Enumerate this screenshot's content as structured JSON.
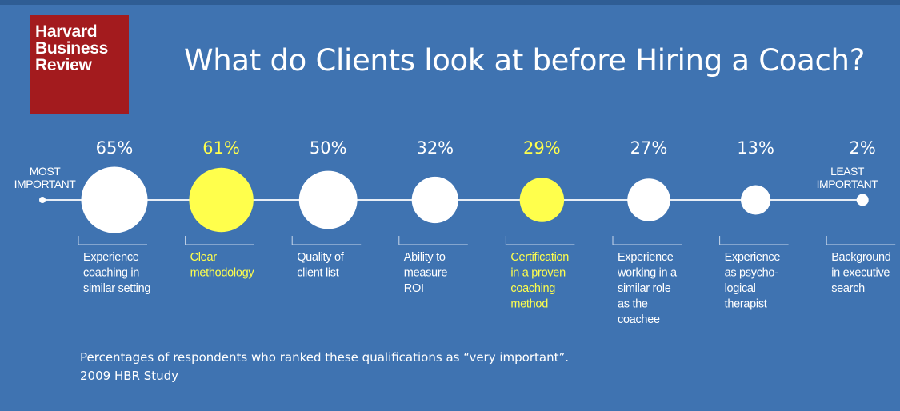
{
  "logo": {
    "line1": "Harvard",
    "line2": "Business",
    "line3": "Review"
  },
  "title": "What do Clients look at before Hiring a Coach?",
  "scale": {
    "left_line1": "MOST",
    "left_line2": "IMPORTANT",
    "right_line1": "LEAST",
    "right_line2": "IMPORTANT"
  },
  "captions": {
    "line1": "Percentages of respondents who ranked these qualifications as “very important”.",
    "line2": "2009 HBR Study"
  },
  "colors": {
    "background": "#3f73b1",
    "circle": "#ffffff",
    "highlight": "#ffff4c",
    "logo": "#a31b1e"
  },
  "chart_data": {
    "type": "bubble",
    "title": "What do Clients look at before Hiring a Coach?",
    "unit": "%",
    "items": [
      {
        "value": 65,
        "value_label": "65%",
        "label": [
          "Experience",
          "coaching in",
          "similar setting"
        ],
        "highlight": false
      },
      {
        "value": 61,
        "value_label": "61%",
        "label": [
          "Clear",
          "methodology"
        ],
        "highlight": true
      },
      {
        "value": 50,
        "value_label": "50%",
        "label": [
          "Quality of",
          "client list"
        ],
        "highlight": false
      },
      {
        "value": 32,
        "value_label": "32%",
        "label": [
          "Ability to",
          "measure",
          "ROI"
        ],
        "highlight": false
      },
      {
        "value": 29,
        "value_label": "29%",
        "label": [
          "Certification",
          "in a proven",
          "coaching",
          "method"
        ],
        "highlight": true
      },
      {
        "value": 27,
        "value_label": "27%",
        "label": [
          "Experience",
          "working in a",
          "similar role",
          "as the",
          "coachee"
        ],
        "highlight": false
      },
      {
        "value": 13,
        "value_label": "13%",
        "label": [
          "Experience",
          "as psycho-",
          "logical",
          "therapist"
        ],
        "highlight": false
      },
      {
        "value": 2,
        "value_label": "2%",
        "label": [
          "Background",
          "in executive",
          "search"
        ],
        "highlight": false
      }
    ]
  }
}
